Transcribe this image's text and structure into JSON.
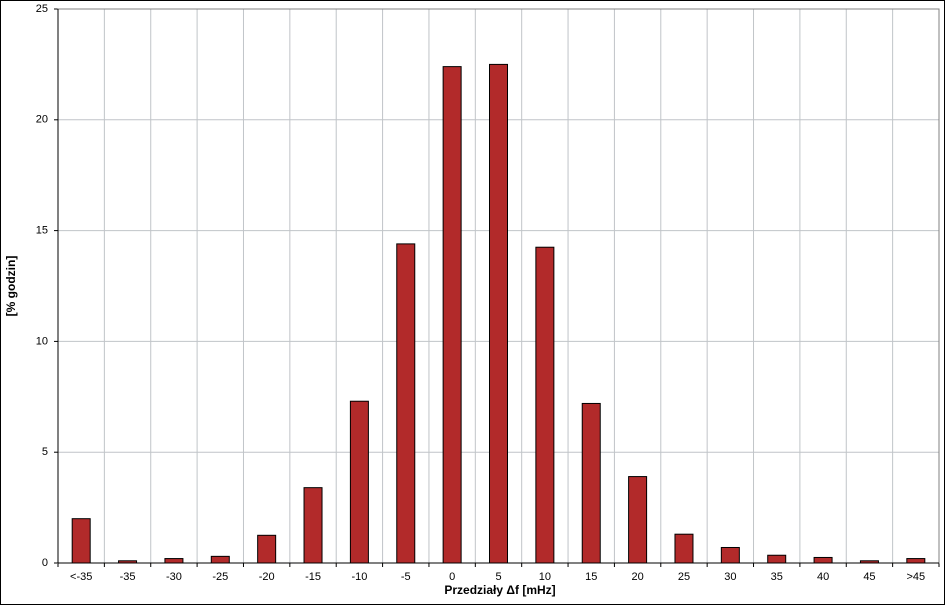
{
  "chart_data": {
    "type": "bar",
    "x_label": "Przedziały Δf [mHz]",
    "y_label": "[% godzin]",
    "categories": [
      "<-35",
      "-35",
      "-30",
      "-25",
      "-20",
      "-15",
      "-10",
      "-5",
      "0",
      "5",
      "10",
      "15",
      "20",
      "25",
      "30",
      "35",
      "40",
      "45",
      ">45"
    ],
    "values": [
      2.0,
      0.1,
      0.2,
      0.3,
      1.25,
      3.4,
      7.3,
      14.4,
      22.4,
      22.5,
      14.25,
      7.2,
      3.9,
      1.3,
      0.7,
      0.35,
      0.25,
      0.1,
      0.2
    ],
    "color": "#b22a2a",
    "ylim": [
      0,
      25
    ],
    "yticks": [
      0,
      5,
      10,
      15,
      20,
      25
    ],
    "grid": true
  }
}
